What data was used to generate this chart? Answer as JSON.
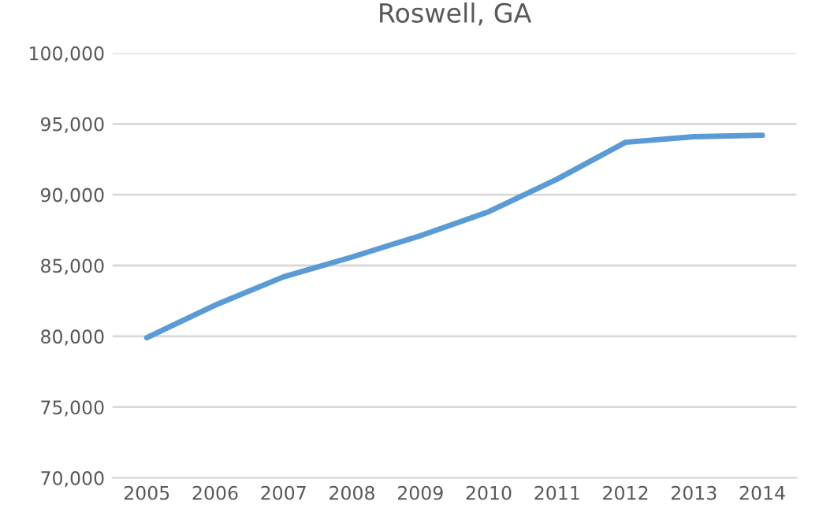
{
  "chart_data": {
    "type": "line",
    "title": "Roswell, GA",
    "categories": [
      "2005",
      "2006",
      "2007",
      "2008",
      "2009",
      "2010",
      "2011",
      "2012",
      "2013",
      "2014"
    ],
    "series": [
      {
        "color": "#5b9bd5",
        "values": [
          79900,
          82200,
          84200,
          85600,
          87100,
          88800,
          91100,
          93700,
          94100,
          94200
        ]
      }
    ],
    "ylim": [
      70000,
      100000
    ],
    "yticks": [
      {
        "value": 70000,
        "label": "70,000"
      },
      {
        "value": 75000,
        "label": "75,000"
      },
      {
        "value": 80000,
        "label": "80,000"
      },
      {
        "value": 85000,
        "label": "85,000"
      },
      {
        "value": 90000,
        "label": "90,000"
      },
      {
        "value": 95000,
        "label": "95,000"
      },
      {
        "value": 100000,
        "label": "100,000"
      }
    ],
    "grid": "y",
    "marker": "none",
    "line_style": "solid",
    "legend": false
  }
}
